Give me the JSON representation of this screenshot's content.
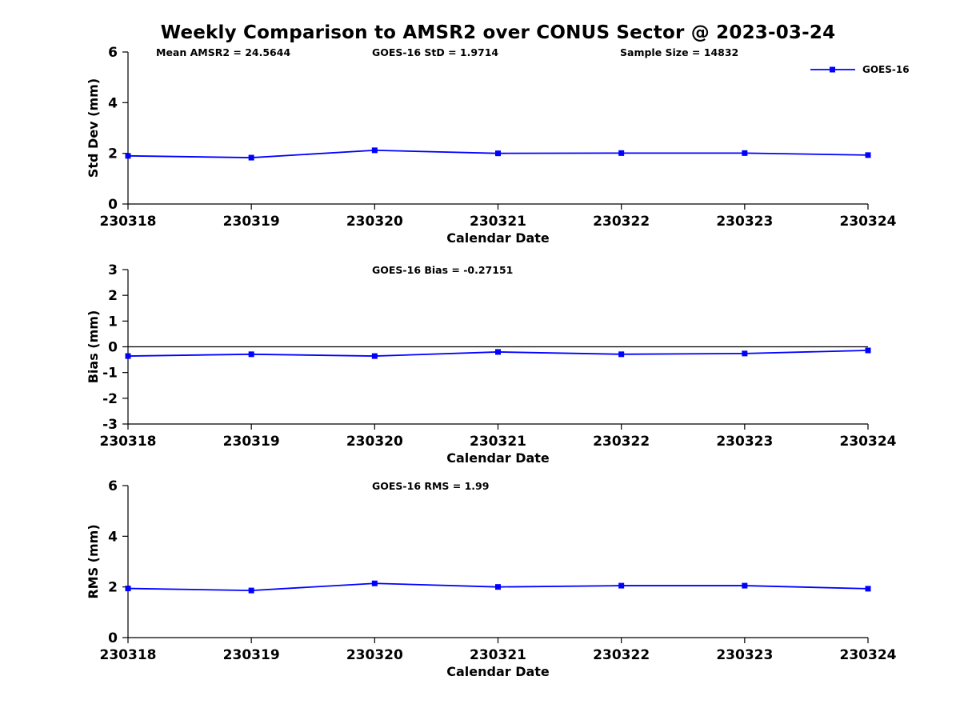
{
  "title": "Weekly Comparison to AMSR2 over CONUS Sector @ 2023-03-24",
  "legend": {
    "label": "GOES-16",
    "color": "#0000ff",
    "marker": "square"
  },
  "chart_data": [
    {
      "type": "line",
      "id": "std-dev",
      "annotations": [
        "Mean AMSR2 = 24.5644",
        "GOES-16 StD = 1.9714",
        "Sample Size = 14832"
      ],
      "xlabel": "Calendar Date",
      "ylabel": "Std Dev (mm)",
      "categories": [
        "230318",
        "230319",
        "230320",
        "230321",
        "230322",
        "230323",
        "230324"
      ],
      "ylim": [
        0,
        6
      ],
      "yticks": [
        0,
        2,
        4,
        6
      ],
      "grid": false,
      "zero_line": false,
      "legend_position": "top-right-outside",
      "series": [
        {
          "name": "GOES-16",
          "color": "#0000ff",
          "marker": "square",
          "values": [
            1.9,
            1.83,
            2.12,
            2.0,
            2.01,
            2.01,
            1.93
          ]
        }
      ]
    },
    {
      "type": "line",
      "id": "bias",
      "annotations": [
        "GOES-16 Bias  = -0.27151"
      ],
      "xlabel": "Calendar Date",
      "ylabel": "Bias (mm)",
      "categories": [
        "230318",
        "230319",
        "230320",
        "230321",
        "230322",
        "230323",
        "230324"
      ],
      "ylim": [
        -3,
        3
      ],
      "yticks": [
        -3,
        -2,
        -1,
        0,
        1,
        2,
        3
      ],
      "grid": false,
      "zero_line": true,
      "series": [
        {
          "name": "GOES-16",
          "color": "#0000ff",
          "marker": "square",
          "values": [
            -0.36,
            -0.29,
            -0.36,
            -0.2,
            -0.29,
            -0.26,
            -0.14
          ]
        }
      ]
    },
    {
      "type": "line",
      "id": "rms",
      "annotations": [
        "GOES-16 RMS = 1.99"
      ],
      "xlabel": "Calendar Date",
      "ylabel": "RMS (mm)",
      "categories": [
        "230318",
        "230319",
        "230320",
        "230321",
        "230322",
        "230323",
        "230324"
      ],
      "ylim": [
        0,
        6
      ],
      "yticks": [
        0,
        2,
        4,
        6
      ],
      "grid": false,
      "zero_line": false,
      "series": [
        {
          "name": "GOES-16",
          "color": "#0000ff",
          "marker": "square",
          "values": [
            1.94,
            1.86,
            2.14,
            2.0,
            2.05,
            2.05,
            1.93
          ]
        }
      ]
    }
  ]
}
